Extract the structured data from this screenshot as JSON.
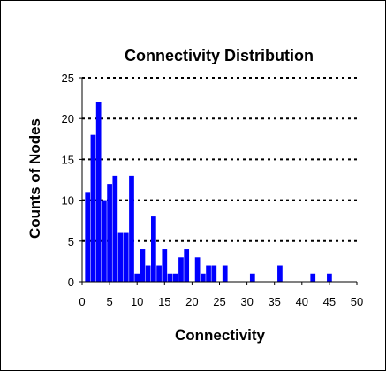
{
  "chart_data": {
    "type": "bar",
    "title": "Connectivity Distribution",
    "xlabel": "Connectivity",
    "ylabel": "Counts of Nodes",
    "xlim": [
      0,
      50
    ],
    "ylim": [
      0,
      25
    ],
    "x_ticks": [
      0,
      5,
      10,
      15,
      20,
      25,
      30,
      35,
      40,
      45,
      50
    ],
    "y_ticks": [
      0,
      5,
      10,
      15,
      20,
      25
    ],
    "grid": "horizontal dashed",
    "legend": "none",
    "bar_color": "#0000ff",
    "x": [
      1,
      2,
      3,
      4,
      5,
      6,
      7,
      8,
      9,
      10,
      11,
      12,
      13,
      14,
      15,
      16,
      17,
      18,
      19,
      20,
      21,
      22,
      23,
      24,
      26,
      31,
      36,
      42,
      45
    ],
    "values": [
      11,
      18,
      22,
      10,
      12,
      13,
      6,
      6,
      13,
      1,
      4,
      2,
      8,
      2,
      4,
      1,
      1,
      3,
      4,
      0,
      3,
      1,
      2,
      2,
      2,
      1,
      2,
      1,
      1
    ]
  }
}
